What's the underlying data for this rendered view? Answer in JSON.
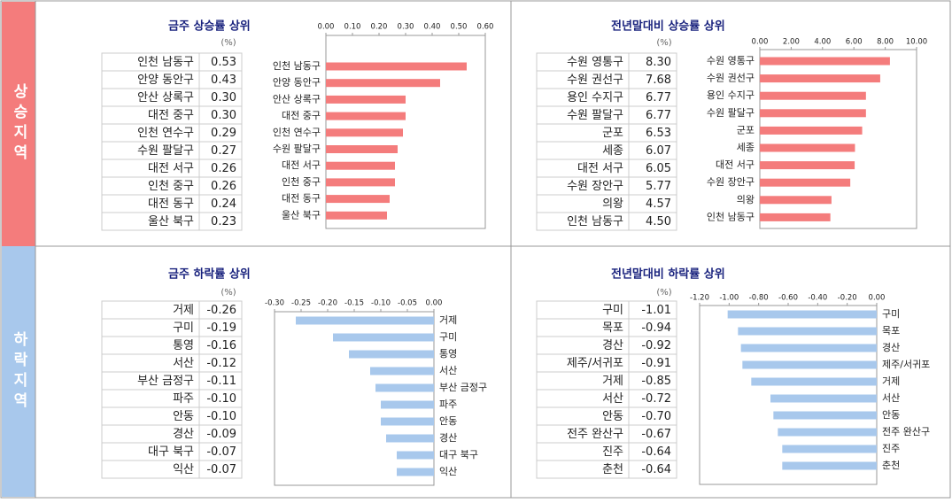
{
  "sections": [
    "상승지역",
    "하락지역"
  ],
  "chart_data": [
    {
      "type": "bar",
      "orientation": "horizontal",
      "title": "금주 상승률 상위",
      "unit": "(%)",
      "color": "#f47c7c",
      "categories": [
        "인천 남동구",
        "안양 동안구",
        "안산 상록구",
        "대전 중구",
        "인천 연수구",
        "수원 팔달구",
        "대전 서구",
        "인천 중구",
        "대전 동구",
        "울산 북구"
      ],
      "values": [
        0.53,
        0.43,
        0.3,
        0.3,
        0.29,
        0.27,
        0.26,
        0.26,
        0.24,
        0.23
      ],
      "value_labels": [
        "0.53",
        "0.43",
        "0.30",
        "0.30",
        "0.29",
        "0.27",
        "0.26",
        "0.26",
        "0.24",
        "0.23"
      ],
      "xlim": [
        0,
        0.6
      ],
      "xticks": [
        {
          "value": 0,
          "label": "0.00"
        },
        {
          "value": 0.1,
          "label": "0.10"
        },
        {
          "value": 0.2,
          "label": "0.20"
        },
        {
          "value": 0.3,
          "label": "0.30"
        },
        {
          "value": 0.4,
          "label": "0.40"
        },
        {
          "value": 0.5,
          "label": "0.50"
        },
        {
          "value": 0.6,
          "label": "0.60"
        }
      ]
    },
    {
      "type": "bar",
      "orientation": "horizontal",
      "title": "전년말대비 상승률 상위",
      "unit": "(%)",
      "color": "#f47c7c",
      "categories": [
        "수원 영통구",
        "수원 권선구",
        "용인 수지구",
        "수원 팔달구",
        "군포",
        "세종",
        "대전 서구",
        "수원 장안구",
        "의왕",
        "인천 남동구"
      ],
      "values": [
        8.3,
        7.68,
        6.77,
        6.77,
        6.53,
        6.07,
        6.05,
        5.77,
        4.57,
        4.5
      ],
      "value_labels": [
        "8.30",
        "7.68",
        "6.77",
        "6.77",
        "6.53",
        "6.07",
        "6.05",
        "5.77",
        "4.57",
        "4.50"
      ],
      "xlim": [
        0,
        10
      ],
      "xticks": [
        {
          "value": 0,
          "label": "0.00"
        },
        {
          "value": 2,
          "label": "2.00"
        },
        {
          "value": 4,
          "label": "4.00"
        },
        {
          "value": 6,
          "label": "6.00"
        },
        {
          "value": 8,
          "label": "8.00"
        },
        {
          "value": 10,
          "label": "10.00"
        }
      ]
    },
    {
      "type": "bar",
      "orientation": "horizontal",
      "title": "금주 하락률 상위",
      "unit": "(%)",
      "color": "#a8c8ec",
      "categories": [
        "거제",
        "구미",
        "통영",
        "서산",
        "부산 금정구",
        "파주",
        "안동",
        "경산",
        "대구 북구",
        "익산"
      ],
      "values": [
        -0.26,
        -0.19,
        -0.16,
        -0.12,
        -0.11,
        -0.1,
        -0.1,
        -0.09,
        -0.07,
        -0.07
      ],
      "value_labels": [
        "-0.26",
        "-0.19",
        "-0.16",
        "-0.12",
        "-0.11",
        "-0.10",
        "-0.10",
        "-0.09",
        "-0.07",
        "-0.07"
      ],
      "xlim": [
        -0.3,
        0
      ],
      "xticks": [
        {
          "value": -0.3,
          "label": "-0.30"
        },
        {
          "value": -0.25,
          "label": "-0.25"
        },
        {
          "value": -0.2,
          "label": "-0.20"
        },
        {
          "value": -0.15,
          "label": "-0.15"
        },
        {
          "value": -0.1,
          "label": "-0.10"
        },
        {
          "value": -0.05,
          "label": "-0.05"
        },
        {
          "value": 0,
          "label": "0.00"
        }
      ]
    },
    {
      "type": "bar",
      "orientation": "horizontal",
      "title": "전년말대비 하락률 상위",
      "unit": "(%)",
      "color": "#a8c8ec",
      "categories": [
        "구미",
        "목포",
        "경산",
        "제주/서귀포",
        "거제",
        "서산",
        "안동",
        "전주 완산구",
        "진주",
        "춘천"
      ],
      "values": [
        -1.01,
        -0.94,
        -0.92,
        -0.91,
        -0.85,
        -0.72,
        -0.7,
        -0.67,
        -0.64,
        -0.64
      ],
      "value_labels": [
        "-1.01",
        "-0.94",
        "-0.92",
        "-0.91",
        "-0.85",
        "-0.72",
        "-0.70",
        "-0.67",
        "-0.64",
        "-0.64"
      ],
      "xlim": [
        -1.2,
        0
      ],
      "xticks": [
        {
          "value": -1.2,
          "label": "-1.20"
        },
        {
          "value": -1,
          "label": "-1.00"
        },
        {
          "value": -0.8,
          "label": "-0.80"
        },
        {
          "value": -0.6,
          "label": "-0.60"
        },
        {
          "value": -0.4,
          "label": "-0.40"
        },
        {
          "value": -0.2,
          "label": "-0.20"
        },
        {
          "value": 0,
          "label": "0.00"
        }
      ]
    }
  ]
}
